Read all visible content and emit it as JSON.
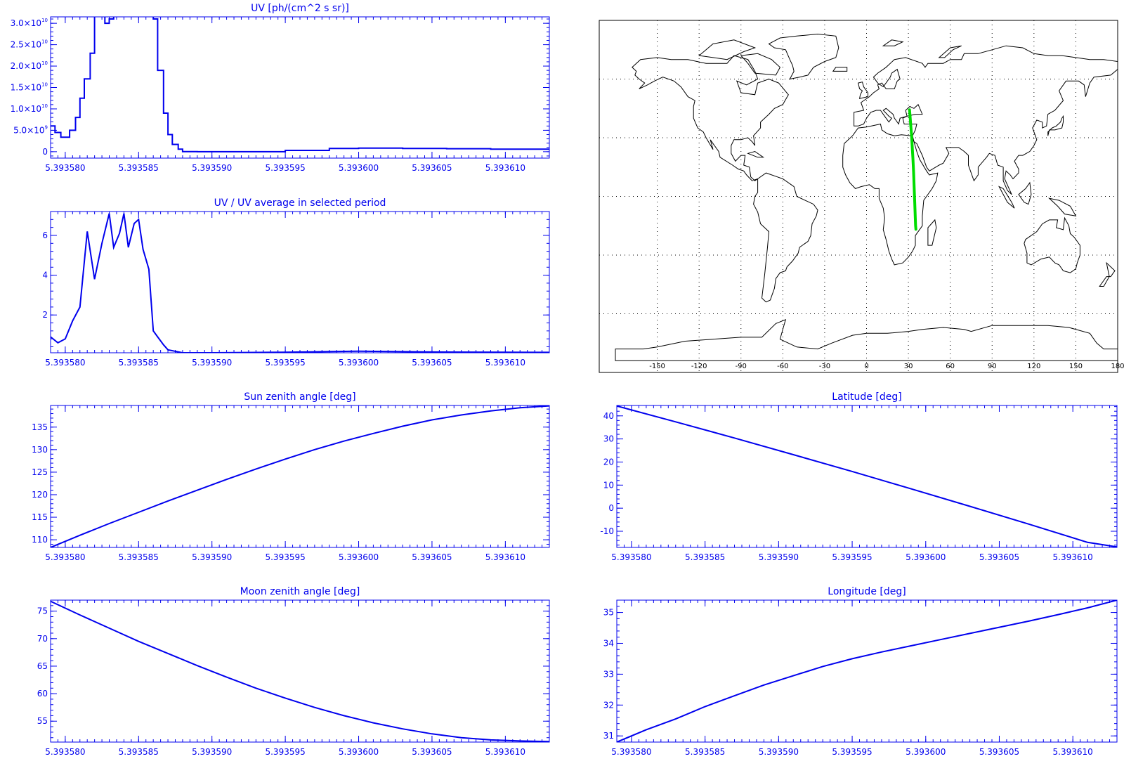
{
  "colors": {
    "plot": "#0000ee",
    "map_coast": "#000000",
    "map_track": "#00dd00",
    "map_grid": "#000000",
    "map_text": "#000000"
  },
  "chart_data": [
    {
      "id": "uv",
      "type": "line",
      "title": "UV [ph/(cm^2 s sr)]",
      "xlabel": "",
      "ylabel": "",
      "xlim": [
        5.393579,
        5.393613
      ],
      "ylim": [
        -1500000000.0,
        31500000000.0
      ],
      "xticks": [
        5.39358,
        5.393585,
        5.39359,
        5.393595,
        5.3936,
        5.393605,
        5.39361
      ],
      "xticklabels": [
        "5.393580",
        "5.393585",
        "5.393590",
        "5.393595",
        "5.393600",
        "5.393605",
        "5.393610"
      ],
      "yticks": [
        0,
        5000000000.0,
        10000000000.0,
        15000000000.0,
        20000000000.0,
        25000000000.0,
        30000000000.0
      ],
      "yticklabels": [
        {
          "base": "0",
          "exp": ""
        },
        {
          "base": "5.0×10",
          "exp": "9"
        },
        {
          "base": "1.0×10",
          "exp": "10"
        },
        {
          "base": "1.5×10",
          "exp": "10"
        },
        {
          "base": "2.0×10",
          "exp": "10"
        },
        {
          "base": "2.5×10",
          "exp": "10"
        },
        {
          "base": "3.0×10",
          "exp": "10"
        }
      ],
      "step": true,
      "series": [
        {
          "x": [
            5.393579,
            5.3935793,
            5.3935797,
            5.39358,
            5.3935803,
            5.3935807,
            5.393581,
            5.3935813,
            5.3935817,
            5.393582,
            5.3935823,
            5.3935827,
            5.393583,
            5.3935833,
            5.3935837,
            5.393584,
            5.3935843,
            5.3935847,
            5.393585,
            5.3935853,
            5.3935857,
            5.393586,
            5.3935863,
            5.3935867,
            5.393587,
            5.3935873,
            5.3935877,
            5.393588,
            5.393589,
            5.393592,
            5.393595,
            5.393598,
            5.3936,
            5.393603,
            5.393606,
            5.393609,
            5.393613
          ],
          "y": [
            6000000000.0,
            4500000000.0,
            3400000000.0,
            3400000000.0,
            5000000000.0,
            8000000000.0,
            12500000000.0,
            17000000000.0,
            23000000000.0,
            32000000000.0,
            33000000000.0,
            30000000000.0,
            31000000000.0,
            33000000000.0,
            33000000000.0,
            33000000000.0,
            33000000000.0,
            33000000000.0,
            33000000000.0,
            33000000000.0,
            33000000000.0,
            31000000000.0,
            19000000000.0,
            9000000000.0,
            4000000000.0,
            1700000000.0,
            600000000.0,
            20000000.0,
            0,
            0,
            300000000.0,
            750000000.0,
            850000000.0,
            750000000.0,
            700000000.0,
            600000000.0,
            400000000.0
          ]
        }
      ]
    },
    {
      "id": "ratio",
      "type": "line",
      "title": "UV / UV average in selected period",
      "xlabel": "",
      "ylabel": "",
      "xlim": [
        5.393579,
        5.393613
      ],
      "ylim": [
        0.1,
        7.2
      ],
      "xticks": [
        5.39358,
        5.393585,
        5.39359,
        5.393595,
        5.3936,
        5.393605,
        5.39361
      ],
      "xticklabels": [
        "5.393580",
        "5.393585",
        "5.393590",
        "5.393595",
        "5.393600",
        "5.393605",
        "5.393610"
      ],
      "yticks": [
        2,
        4,
        6
      ],
      "yticklabels": [
        {
          "base": "2",
          "exp": ""
        },
        {
          "base": "4",
          "exp": ""
        },
        {
          "base": "6",
          "exp": ""
        }
      ],
      "step": false,
      "series": [
        {
          "x": [
            5.393579,
            5.3935795,
            5.39358,
            5.3935805,
            5.393581,
            5.3935815,
            5.393582,
            5.3935825,
            5.393583,
            5.3935833,
            5.3935837,
            5.393584,
            5.3935843,
            5.3935847,
            5.393585,
            5.3935853,
            5.3935857,
            5.393586,
            5.3935863,
            5.3935867,
            5.393587,
            5.393588,
            5.39359,
            5.393595,
            5.3936,
            5.393605,
            5.393613
          ],
          "y": [
            0.9,
            0.6,
            0.8,
            1.7,
            2.4,
            6.2,
            3.8,
            5.6,
            7.1,
            5.4,
            6.1,
            7.1,
            5.4,
            6.6,
            6.8,
            5.3,
            4.3,
            1.2,
            0.9,
            0.5,
            0.25,
            0.1,
            0.1,
            0.13,
            0.18,
            0.14,
            0.12
          ]
        }
      ]
    },
    {
      "id": "sun",
      "type": "line",
      "title": "Sun zenith angle [deg]",
      "xlabel": "",
      "ylabel": "",
      "xlim": [
        5.393579,
        5.393613
      ],
      "ylim": [
        108.3,
        139.8
      ],
      "xticks": [
        5.39358,
        5.393585,
        5.39359,
        5.393595,
        5.3936,
        5.393605,
        5.39361
      ],
      "xticklabels": [
        "5.393580",
        "5.393585",
        "5.393590",
        "5.393595",
        "5.393600",
        "5.393605",
        "5.393610"
      ],
      "yticks": [
        110,
        115,
        120,
        125,
        130,
        135
      ],
      "yticklabels": [
        {
          "base": "110",
          "exp": ""
        },
        {
          "base": "115",
          "exp": ""
        },
        {
          "base": "120",
          "exp": ""
        },
        {
          "base": "125",
          "exp": ""
        },
        {
          "base": "130",
          "exp": ""
        },
        {
          "base": "135",
          "exp": ""
        }
      ],
      "step": false,
      "series": [
        {
          "x": [
            5.393579,
            5.393581,
            5.393583,
            5.393585,
            5.393587,
            5.393589,
            5.393591,
            5.393593,
            5.393595,
            5.393597,
            5.393599,
            5.393601,
            5.393603,
            5.393605,
            5.393607,
            5.393609,
            5.393611,
            5.393613
          ],
          "y": [
            108.3,
            111.0,
            113.6,
            116.1,
            118.6,
            121.0,
            123.4,
            125.7,
            127.9,
            130.0,
            131.9,
            133.6,
            135.2,
            136.6,
            137.7,
            138.6,
            139.3,
            139.7
          ]
        }
      ]
    },
    {
      "id": "lat",
      "type": "line",
      "title": "Latitude [deg]",
      "xlabel": "",
      "ylabel": "",
      "xlim": [
        5.393579,
        5.393613
      ],
      "ylim": [
        -17,
        44.5
      ],
      "xticks": [
        5.39358,
        5.393585,
        5.39359,
        5.393595,
        5.3936,
        5.393605,
        5.39361
      ],
      "xticklabels": [
        "5.393580",
        "5.393585",
        "5.393590",
        "5.393595",
        "5.393600",
        "5.393605",
        "5.393610"
      ],
      "yticks": [
        -10,
        0,
        10,
        20,
        30,
        40
      ],
      "yticklabels": [
        {
          "base": "-10",
          "exp": ""
        },
        {
          "base": "0",
          "exp": ""
        },
        {
          "base": "10",
          "exp": ""
        },
        {
          "base": "20",
          "exp": ""
        },
        {
          "base": "30",
          "exp": ""
        },
        {
          "base": "40",
          "exp": ""
        }
      ],
      "step": false,
      "series": [
        {
          "x": [
            5.393579,
            5.393583,
            5.393587,
            5.393591,
            5.393595,
            5.393599,
            5.393603,
            5.393607,
            5.393611,
            5.393613
          ],
          "y": [
            44.3,
            37.4,
            30.4,
            23.2,
            15.9,
            8.4,
            0.8,
            -6.9,
            -14.8,
            -16.8
          ]
        }
      ]
    },
    {
      "id": "moon",
      "type": "line",
      "title": "Moon zenith angle [deg]",
      "xlabel": "",
      "ylabel": "",
      "xlim": [
        5.393579,
        5.393613
      ],
      "ylim": [
        51.2,
        77
      ],
      "xticks": [
        5.39358,
        5.393585,
        5.39359,
        5.393595,
        5.3936,
        5.393605,
        5.39361
      ],
      "xticklabels": [
        "5.393580",
        "5.393585",
        "5.393590",
        "5.393595",
        "5.393600",
        "5.393605",
        "5.393610"
      ],
      "yticks": [
        55,
        60,
        65,
        70,
        75
      ],
      "yticklabels": [
        {
          "base": "55",
          "exp": ""
        },
        {
          "base": "60",
          "exp": ""
        },
        {
          "base": "65",
          "exp": ""
        },
        {
          "base": "70",
          "exp": ""
        },
        {
          "base": "75",
          "exp": ""
        }
      ],
      "step": false,
      "series": [
        {
          "x": [
            5.393579,
            5.393581,
            5.393583,
            5.393585,
            5.393587,
            5.393589,
            5.393591,
            5.393593,
            5.393595,
            5.393597,
            5.393599,
            5.393601,
            5.393603,
            5.393605,
            5.393607,
            5.393609,
            5.393611,
            5.393613
          ],
          "y": [
            76.8,
            74.3,
            71.9,
            69.5,
            67.3,
            65.1,
            63.0,
            61.0,
            59.2,
            57.5,
            56.0,
            54.7,
            53.6,
            52.7,
            52.0,
            51.6,
            51.4,
            51.3
          ]
        }
      ]
    },
    {
      "id": "lon",
      "type": "line",
      "title": "Longitude [deg]",
      "xlabel": "",
      "ylabel": "",
      "xlim": [
        5.393579,
        5.393613
      ],
      "ylim": [
        30.8,
        35.4
      ],
      "xticks": [
        5.39358,
        5.393585,
        5.39359,
        5.393595,
        5.3936,
        5.393605,
        5.39361
      ],
      "xticklabels": [
        "5.393580",
        "5.393585",
        "5.393590",
        "5.393595",
        "5.393600",
        "5.393605",
        "5.393610"
      ],
      "yticks": [
        31,
        32,
        33,
        34,
        35
      ],
      "yticklabels": [
        {
          "base": "31",
          "exp": ""
        },
        {
          "base": "32",
          "exp": ""
        },
        {
          "base": "33",
          "exp": ""
        },
        {
          "base": "34",
          "exp": ""
        },
        {
          "base": "35",
          "exp": ""
        }
      ],
      "step": false,
      "series": [
        {
          "x": [
            5.393579,
            5.393581,
            5.393583,
            5.393584,
            5.393585,
            5.393587,
            5.393589,
            5.393591,
            5.393593,
            5.393595,
            5.393597,
            5.393599,
            5.393601,
            5.393603,
            5.393605,
            5.393607,
            5.393609,
            5.393611,
            5.393613
          ],
          "y": [
            30.8,
            31.2,
            31.55,
            31.75,
            31.95,
            32.3,
            32.65,
            32.95,
            33.25,
            33.5,
            33.72,
            33.92,
            34.12,
            34.32,
            34.52,
            34.72,
            34.93,
            35.15,
            35.4
          ]
        }
      ]
    },
    {
      "id": "map",
      "type": "map",
      "projection": "cylindrical",
      "xlim": [
        -180,
        180
      ],
      "ylim": [
        -90,
        90
      ],
      "xticks": [
        -150,
        -120,
        -90,
        -60,
        -30,
        0,
        30,
        60,
        90,
        120,
        150,
        180
      ],
      "xticklabels": [
        "-150",
        "-120",
        "-90",
        "-60",
        "-30",
        "0",
        "30",
        "60",
        "90",
        "120",
        "150",
        "180"
      ],
      "grid": true,
      "track": {
        "lon": [
          30.8,
          31.2,
          31.55,
          31.95,
          32.3,
          32.65,
          32.95,
          33.25,
          33.5,
          33.72,
          33.92,
          34.12,
          34.32,
          34.52,
          34.72,
          34.93,
          35.15,
          35.4
        ],
        "lat": [
          44.3,
          40.9,
          37.4,
          33.9,
          30.4,
          26.8,
          23.2,
          19.6,
          15.9,
          12.2,
          8.4,
          4.6,
          0.8,
          -3.0,
          -6.9,
          -10.9,
          -14.8,
          -16.8
        ]
      }
    }
  ]
}
